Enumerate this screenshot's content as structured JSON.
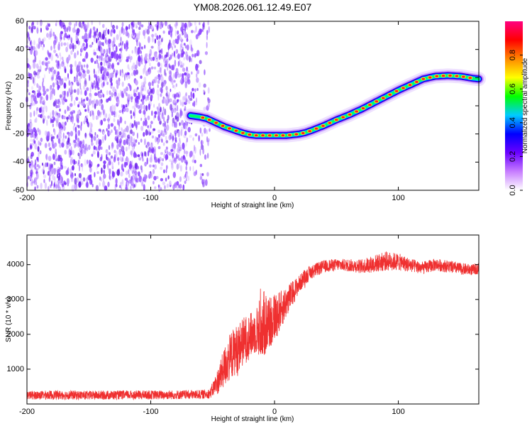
{
  "title": "YM08.2026.061.12.49.E07",
  "chart_data": [
    {
      "type": "heatmap",
      "name": "spectrogram",
      "xlabel": "Height of straight line (km)",
      "ylabel": "Frequency (Hz)",
      "xlim": [
        -200,
        165
      ],
      "ylim": [
        -60,
        60
      ],
      "xticks": [
        -200,
        -100,
        0,
        100
      ],
      "yticks": [
        -60,
        -40,
        -20,
        0,
        20,
        40,
        60
      ],
      "noise_region_x": [
        -200,
        -52
      ],
      "ridge": {
        "x": [
          -68,
          -60,
          -55,
          -50,
          -45,
          -40,
          -35,
          -30,
          -25,
          -20,
          -15,
          -10,
          -5,
          0,
          5,
          10,
          15,
          20,
          25,
          30,
          40,
          50,
          60,
          70,
          80,
          90,
          100,
          110,
          120,
          130,
          140,
          150,
          160,
          165
        ],
        "y": [
          -7,
          -8,
          -9,
          -11,
          -13,
          -15,
          -16.5,
          -18,
          -19.5,
          -20.5,
          -21,
          -21,
          -21,
          -21,
          -21,
          -21,
          -20.5,
          -20,
          -19,
          -17.5,
          -14,
          -10,
          -6.5,
          -2.5,
          2,
          6.5,
          11,
          15,
          19,
          21,
          21.5,
          21,
          19.5,
          19
        ]
      },
      "colorbar": {
        "label": "Normalized spectral amplitude",
        "range": [
          0.0,
          1.0
        ],
        "ticks": [
          "0.0",
          "0.2",
          "0.4",
          "0.6",
          "0.8"
        ],
        "colors": [
          "#ffffff",
          "#c77dff",
          "#6a00ff",
          "#0000ff",
          "#00ccff",
          "#00ff00",
          "#ffff00",
          "#ff8800",
          "#ff0000",
          "#ff0080"
        ]
      }
    },
    {
      "type": "line",
      "name": "snr",
      "xlabel": "Height of straight line (km)",
      "ylabel": "SNR (10 * v/v)",
      "xlim": [
        -200,
        165
      ],
      "ylim": [
        0,
        4850
      ],
      "xticks": [
        -200,
        -100,
        0,
        100
      ],
      "yticks": [
        1000,
        2000,
        3000,
        4000
      ],
      "color": "#ef3030",
      "series": [
        {
          "name": "SNR",
          "x": [
            -200,
            -180,
            -150,
            -120,
            -90,
            -60,
            -52,
            -45,
            -40,
            -35,
            -30,
            -25,
            -20,
            -15,
            -10,
            -5,
            0,
            5,
            10,
            15,
            20,
            25,
            30,
            40,
            50,
            60,
            70,
            80,
            90,
            100,
            110,
            120,
            130,
            140,
            150,
            160,
            165
          ],
          "y": [
            250,
            260,
            250,
            260,
            260,
            270,
            300,
            700,
            1100,
            1400,
            1600,
            1800,
            1950,
            2100,
            2250,
            2350,
            2500,
            2700,
            2950,
            3200,
            3450,
            3650,
            3800,
            3950,
            4000,
            3980,
            3950,
            4020,
            4100,
            4080,
            3980,
            3900,
            4000,
            3950,
            3880,
            3850,
            3900
          ],
          "noise_amplitude": [
            120,
            130,
            130,
            130,
            130,
            130,
            140,
            400,
            600,
            700,
            700,
            700,
            650,
            650,
            1000,
            900,
            700,
            550,
            450,
            350,
            250,
            220,
            200,
            180,
            170,
            180,
            200,
            250,
            280,
            250,
            200,
            180,
            180,
            180,
            170,
            160,
            160
          ]
        }
      ]
    }
  ]
}
